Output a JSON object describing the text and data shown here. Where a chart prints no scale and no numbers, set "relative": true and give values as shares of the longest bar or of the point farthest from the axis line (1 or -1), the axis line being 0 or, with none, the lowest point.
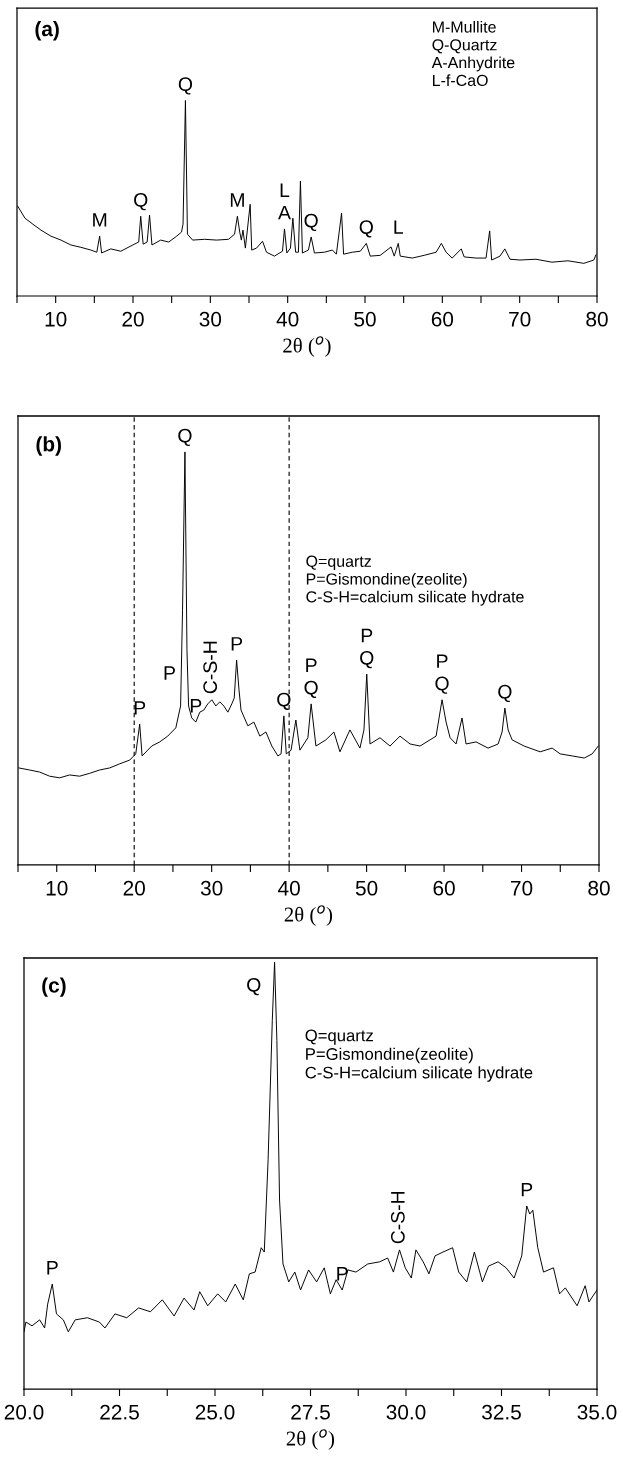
{
  "chart_data": [
    {
      "type": "line",
      "title": "(a)",
      "xlabel": "2θ ($^{o}$)",
      "relative": true,
      "xlim": [
        5,
        80
      ],
      "xticks": [
        {
          "value": 5,
          "label": null
        },
        10,
        {
          "value": 15,
          "label": null
        },
        20,
        {
          "value": 25,
          "label": null
        },
        30,
        {
          "value": 35,
          "label": null
        },
        40,
        {
          "value": 45,
          "label": null
        },
        50,
        {
          "value": 55,
          "label": null
        },
        60,
        {
          "value": 65,
          "label": null
        },
        70,
        {
          "value": 75,
          "label": null
        },
        80
      ],
      "tick_labels": "x",
      "grid": false,
      "legend": false,
      "marker": "none",
      "line_style": "solid",
      "series": [
        {
          "color": "#000000",
          "x": [
            5.1,
            6.03,
            7.06,
            8.1,
            9.39,
            10.68,
            11.97,
            13.26,
            14.55,
            15.32,
            15.69,
            15.94,
            17.13,
            18.42,
            19.97,
            20.74,
            21.0,
            21.31,
            21.83,
            22.14,
            22.45,
            23.58,
            24.62,
            25.65,
            26.27,
            26.47,
            26.78,
            27.04,
            27.71,
            29.26,
            30.81,
            32.36,
            33.13,
            33.5,
            33.8,
            34.01,
            34.22,
            34.53,
            35.15,
            35.35,
            35.97,
            36.75,
            37.26,
            38.29,
            39.33,
            39.59,
            39.9,
            40.36,
            40.67,
            41.03,
            41.39,
            41.65,
            41.91,
            42.68,
            43.04,
            43.46,
            44.75,
            45.78,
            46.3,
            46.97,
            47.23,
            48.36,
            49.39,
            50.17,
            50.68,
            51.97,
            53.37,
            53.78,
            54.3,
            54.56,
            56.11,
            57.65,
            59.2,
            59.87,
            60.49,
            61.27,
            62.45,
            62.82,
            64.36,
            65.65,
            66.12,
            66.38,
            67.46,
            68.08,
            68.75,
            70.04,
            72.11,
            74.17,
            76.24,
            78.3,
            79.59,
            79.85
          ],
          "values": [
            0.459,
            0.398,
            0.367,
            0.337,
            0.306,
            0.286,
            0.261,
            0.249,
            0.235,
            0.224,
            0.306,
            0.22,
            0.241,
            0.229,
            0.261,
            0.276,
            0.408,
            0.265,
            0.276,
            0.414,
            0.261,
            0.286,
            0.276,
            0.306,
            0.327,
            0.367,
            1.0,
            0.316,
            0.286,
            0.29,
            0.286,
            0.29,
            0.316,
            0.408,
            0.327,
            0.286,
            0.337,
            0.245,
            0.469,
            0.235,
            0.245,
            0.28,
            0.224,
            0.204,
            0.229,
            0.343,
            0.22,
            0.245,
            0.398,
            0.224,
            0.224,
            0.588,
            0.22,
            0.235,
            0.302,
            0.22,
            0.224,
            0.235,
            0.214,
            0.424,
            0.214,
            0.224,
            0.229,
            0.269,
            0.204,
            0.208,
            0.251,
            0.204,
            0.269,
            0.204,
            0.194,
            0.208,
            0.224,
            0.269,
            0.224,
            0.194,
            0.241,
            0.2,
            0.194,
            0.194,
            0.333,
            0.184,
            0.204,
            0.241,
            0.188,
            0.184,
            0.188,
            0.173,
            0.18,
            0.167,
            0.184,
            0.21
          ]
        }
      ],
      "annotations": [
        "M-Mullite",
        "Q-Quartz",
        "A-Anhydrite",
        "L-f-CaO",
        {
          "text": "M",
          "x": 15.69,
          "y": 0.306
        },
        {
          "text": "Q",
          "x": 21.0,
          "y": 0.408
        },
        {
          "text": "Q",
          "x": 26.78,
          "y": 1.0
        },
        {
          "text": "M",
          "x": 33.5,
          "y": 0.408
        },
        {
          "text": "L\nA",
          "x": 39.59,
          "y": 0.343
        },
        {
          "text": "Q",
          "x": 43.04,
          "y": 0.302
        },
        {
          "text": "Q",
          "x": 50.17,
          "y": 0.269
        },
        {
          "text": "L",
          "x": 54.3,
          "y": 0.269
        }
      ]
    },
    {
      "type": "line",
      "title": "(b)",
      "xlabel": "2θ ($^{o}$)",
      "relative": true,
      "xlim": [
        5,
        80
      ],
      "xticks": [
        {
          "value": 5,
          "label": null
        },
        10,
        {
          "value": 15,
          "label": null
        },
        20,
        {
          "value": 25,
          "label": null
        },
        30,
        {
          "value": 35,
          "label": null
        },
        40,
        {
          "value": 45,
          "label": null
        },
        50,
        {
          "value": 55,
          "label": null
        },
        60,
        {
          "value": 65,
          "label": null
        },
        70,
        {
          "value": 75,
          "label": null
        },
        80
      ],
      "tick_labels": "x",
      "grid": false,
      "legend": false,
      "marker": "none",
      "line_style": "solid",
      "ref_lines": [
        {
          "axis": "x",
          "value": 20,
          "color": "#000000",
          "line_style": "dashed"
        },
        {
          "axis": "x",
          "value": 40,
          "color": "#000000",
          "line_style": "dashed"
        }
      ],
      "series": [
        {
          "color": "#000000",
          "x": [
            5.1,
            6.5,
            7.79,
            9.08,
            10.38,
            11.67,
            12.96,
            14.25,
            15.54,
            16.84,
            18.13,
            19.42,
            20.2,
            20.71,
            21.02,
            22.26,
            23.3,
            24.33,
            25.37,
            25.99,
            26.24,
            26.55,
            26.81,
            27.02,
            27.43,
            27.95,
            28.47,
            28.98,
            29.5,
            30.02,
            30.54,
            31.05,
            31.57,
            32.09,
            32.6,
            32.91,
            33.22,
            33.53,
            33.79,
            34.67,
            35.45,
            36.22,
            37.0,
            37.77,
            38.55,
            38.96,
            39.32,
            39.63,
            40.25,
            40.87,
            41.39,
            42.42,
            42.84,
            43.46,
            44.75,
            45.78,
            46.56,
            47.85,
            49.14,
            49.66,
            50.02,
            50.44,
            51.73,
            53.02,
            54.31,
            55.61,
            56.9,
            58.19,
            58.97,
            59.74,
            60.26,
            60.78,
            61.55,
            62.32,
            62.84,
            64.13,
            65.68,
            66.98,
            67.49,
            67.85,
            68.27,
            68.78,
            70.33,
            72.4,
            73.95,
            74.99,
            76.54,
            78.09,
            79.12,
            79.9
          ],
          "values": [
            0.235,
            0.23,
            0.225,
            0.215,
            0.211,
            0.218,
            0.215,
            0.222,
            0.23,
            0.235,
            0.245,
            0.254,
            0.269,
            0.341,
            0.264,
            0.288,
            0.298,
            0.312,
            0.332,
            0.385,
            0.617,
            1.0,
            0.521,
            0.385,
            0.356,
            0.346,
            0.37,
            0.375,
            0.39,
            0.4,
            0.385,
            0.395,
            0.385,
            0.37,
            0.39,
            0.404,
            0.496,
            0.424,
            0.375,
            0.337,
            0.346,
            0.312,
            0.322,
            0.288,
            0.264,
            0.269,
            0.361,
            0.269,
            0.278,
            0.351,
            0.278,
            0.308,
            0.39,
            0.288,
            0.303,
            0.322,
            0.274,
            0.327,
            0.283,
            0.327,
            0.462,
            0.293,
            0.308,
            0.288,
            0.312,
            0.293,
            0.288,
            0.303,
            0.312,
            0.4,
            0.346,
            0.308,
            0.293,
            0.356,
            0.293,
            0.298,
            0.283,
            0.293,
            0.322,
            0.38,
            0.327,
            0.303,
            0.288,
            0.274,
            0.283,
            0.269,
            0.264,
            0.259,
            0.269,
            0.288
          ]
        }
      ],
      "annotations": [
        "Q=quartz",
        "P=Gismondine(zeolite)",
        "C-S-H=calcium silicate hydrate",
        {
          "text": "P",
          "x": 20.71,
          "y": 0.341
        },
        {
          "text": "P",
          "x": 25.99,
          "y": 0.385
        },
        {
          "text": "Q",
          "x": 26.55,
          "y": 1.0
        },
        {
          "text": "P",
          "x": 27.95,
          "y": 0.346
        },
        {
          "text": "C-S-H",
          "x": 30.02,
          "y": 0.4
        },
        {
          "text": "P",
          "x": 33.22,
          "y": 0.496
        },
        {
          "text": "Q",
          "x": 39.32,
          "y": 0.361
        },
        {
          "text": "P\nQ",
          "x": 42.84,
          "y": 0.39
        },
        {
          "text": "P\nQ",
          "x": 50.02,
          "y": 0.462
        },
        {
          "text": "P\nQ",
          "x": 59.74,
          "y": 0.4
        },
        {
          "text": "Q",
          "x": 67.85,
          "y": 0.38
        }
      ]
    },
    {
      "type": "line",
      "title": "(c)",
      "xlabel": "2θ ($^{o}$)",
      "relative": true,
      "xlim": [
        20,
        35
      ],
      "xticks": [
        {
          "value": 20,
          "label": "20.0"
        },
        {
          "value": 21.25,
          "label": null
        },
        {
          "value": 22.5,
          "label": "22.5"
        },
        {
          "value": 23.75,
          "label": null
        },
        {
          "value": 25,
          "label": "25.0"
        },
        {
          "value": 26.25,
          "label": null
        },
        {
          "value": 27.5,
          "label": "27.5"
        },
        {
          "value": 28.75,
          "label": null
        },
        {
          "value": 30,
          "label": "30.0"
        },
        {
          "value": 31.25,
          "label": null
        },
        {
          "value": 32.5,
          "label": "32.5"
        },
        {
          "value": 33.75,
          "label": null
        },
        {
          "value": 35,
          "label": "35.0"
        }
      ],
      "tick_labels": "x",
      "grid": false,
      "legend": false,
      "marker": "none",
      "line_style": "solid",
      "series": [
        {
          "color": "#000000",
          "x": [
            20.0,
            20.05,
            20.21,
            20.41,
            20.54,
            20.62,
            20.74,
            20.85,
            21.03,
            21.16,
            21.34,
            21.66,
            21.97,
            22.12,
            22.38,
            22.69,
            23.0,
            23.31,
            23.62,
            23.93,
            24.19,
            24.45,
            24.6,
            24.81,
            25.07,
            25.28,
            25.53,
            25.74,
            25.9,
            26.05,
            26.21,
            26.29,
            26.39,
            26.5,
            26.56,
            26.62,
            26.69,
            26.78,
            26.93,
            27.09,
            27.24,
            27.45,
            27.66,
            27.86,
            28.02,
            28.17,
            28.33,
            28.48,
            28.69,
            29.0,
            29.31,
            29.52,
            29.67,
            29.83,
            29.98,
            30.14,
            30.26,
            30.45,
            30.6,
            30.76,
            30.97,
            31.22,
            31.38,
            31.59,
            31.79,
            32.0,
            32.16,
            32.41,
            32.62,
            32.83,
            33.03,
            33.16,
            33.24,
            33.32,
            33.45,
            33.6,
            33.86,
            34.02,
            34.17,
            34.48,
            34.69,
            34.79,
            35.0
          ],
          "values": [
            0.134,
            0.157,
            0.148,
            0.162,
            0.143,
            0.199,
            0.246,
            0.176,
            0.162,
            0.134,
            0.162,
            0.167,
            0.157,
            0.143,
            0.176,
            0.167,
            0.19,
            0.181,
            0.209,
            0.171,
            0.213,
            0.185,
            0.228,
            0.195,
            0.223,
            0.204,
            0.246,
            0.209,
            0.27,
            0.274,
            0.331,
            0.321,
            0.537,
            0.864,
            1.0,
            0.817,
            0.443,
            0.293,
            0.251,
            0.274,
            0.232,
            0.279,
            0.251,
            0.284,
            0.223,
            0.256,
            0.232,
            0.279,
            0.274,
            0.293,
            0.298,
            0.307,
            0.274,
            0.326,
            0.284,
            0.26,
            0.326,
            0.298,
            0.27,
            0.312,
            0.321,
            0.331,
            0.274,
            0.251,
            0.321,
            0.251,
            0.288,
            0.298,
            0.284,
            0.26,
            0.312,
            0.429,
            0.41,
            0.419,
            0.331,
            0.274,
            0.284,
            0.223,
            0.237,
            0.195,
            0.242,
            0.204,
            0.232
          ]
        }
      ],
      "annotations": [
        "Q=quartz",
        "P=Gismondine(zeolite)",
        "C-S-H=calcium silicate hydrate",
        {
          "text": "P",
          "x": 20.74,
          "y": 0.246
        },
        {
          "text": "Q",
          "x": 26.56,
          "y": 1.0
        },
        {
          "text": "P",
          "x": 28.33,
          "y": 0.232
        },
        {
          "text": "C-S-H",
          "x": 29.83,
          "y": 0.326
        },
        {
          "text": "P",
          "x": 33.16,
          "y": 0.429
        }
      ]
    }
  ]
}
